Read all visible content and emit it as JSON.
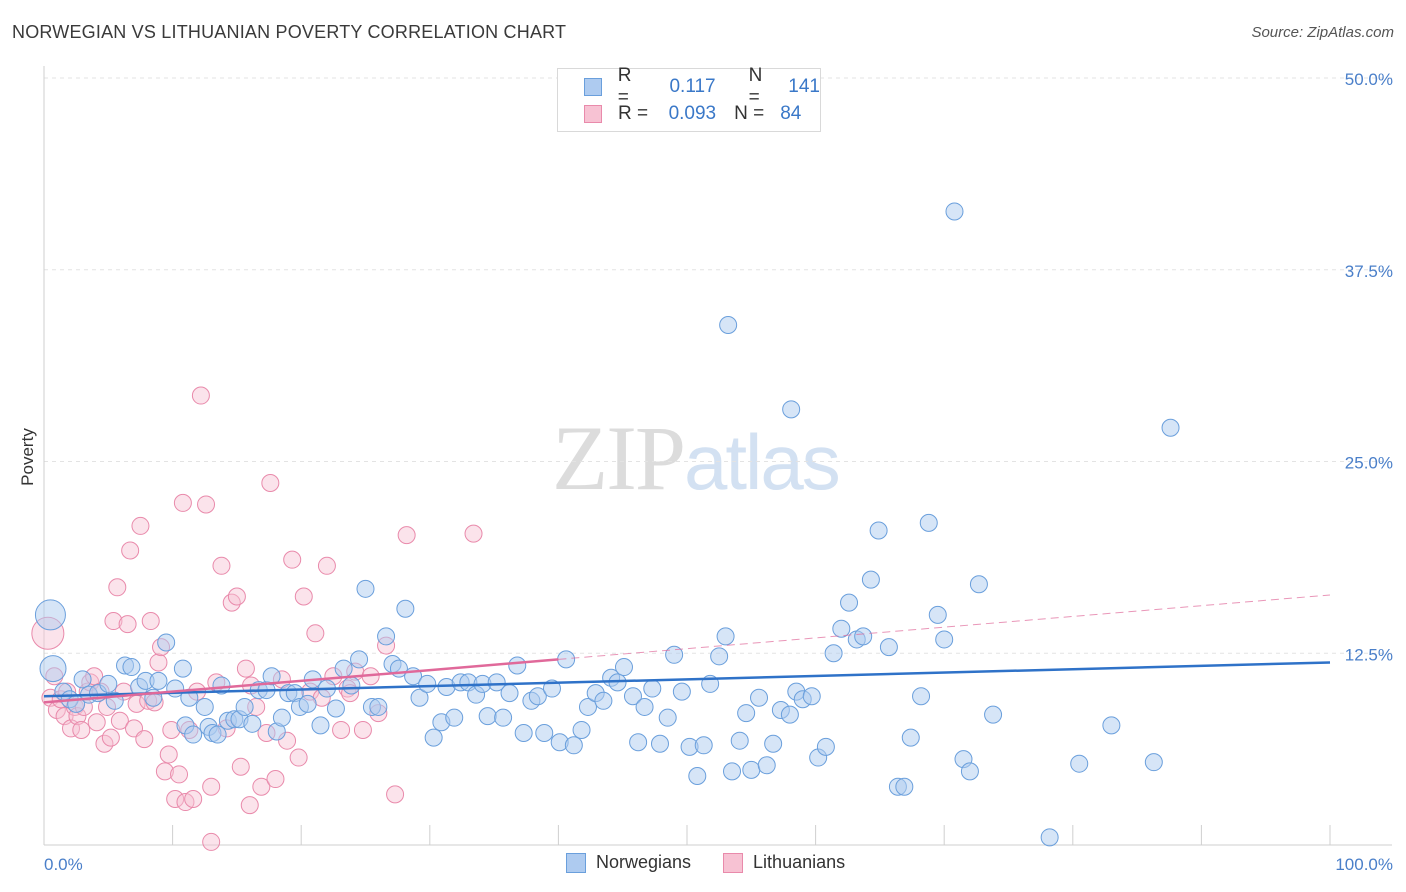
{
  "header": {
    "title": "NORWEGIAN VS LITHUANIAN POVERTY CORRELATION CHART",
    "source": "Source: ZipAtlas.com"
  },
  "watermark": {
    "zip": "ZIP",
    "atlas": "atlas"
  },
  "legend_top": {
    "rows": [
      {
        "r_label": "R =",
        "r_value": "0.117",
        "n_label": "N =",
        "n_value": "141"
      },
      {
        "r_label": "R =",
        "r_value": "0.093",
        "n_label": "N =",
        "n_value": "84"
      }
    ]
  },
  "legend_bottom": {
    "items": [
      "Norwegians",
      "Lithuanians"
    ]
  },
  "colors": {
    "blue_fill": "#aecbf0",
    "blue_stroke": "#6a9fdc",
    "blue_line": "#2f72c8",
    "pink_fill": "#f7c2d3",
    "pink_stroke": "#e98aab",
    "pink_line": "#e0699a",
    "grid": "#e3e3e3",
    "tick_text": "#4a7fc9"
  },
  "chart_data": {
    "type": "scatter",
    "title": "NORWEGIAN VS LITHUANIAN POVERTY CORRELATION CHART",
    "xlabel": "",
    "ylabel": "Poverty",
    "xlim": [
      0,
      100
    ],
    "ylim": [
      0,
      50
    ],
    "x_tick_labels": [
      "0.0%",
      "100.0%"
    ],
    "y_ticks": [
      12.5,
      25.0,
      37.5,
      50.0
    ],
    "y_tick_labels": [
      "12.5%",
      "25.0%",
      "37.5%",
      "50.0%"
    ],
    "grid": true,
    "legend_position": "top-center",
    "series": [
      {
        "name": "Norwegians",
        "r": 0.117,
        "n": 141,
        "trend": {
          "x": [
            0,
            100
          ],
          "y": [
            9.7,
            11.9
          ]
        },
        "points": [
          [
            0.5,
            15.0
          ],
          [
            0.7,
            11.5
          ],
          [
            1.5,
            10.0
          ],
          [
            2.0,
            9.5
          ],
          [
            2.5,
            9.2
          ],
          [
            3.0,
            10.8
          ],
          [
            3.5,
            9.8
          ],
          [
            4.2,
            9.9
          ],
          [
            5.0,
            10.5
          ],
          [
            5.5,
            9.4
          ],
          [
            6.3,
            11.7
          ],
          [
            6.8,
            11.6
          ],
          [
            7.4,
            10.3
          ],
          [
            7.9,
            10.7
          ],
          [
            8.5,
            9.6
          ],
          [
            8.9,
            10.7
          ],
          [
            9.5,
            13.2
          ],
          [
            10.2,
            10.2
          ],
          [
            10.8,
            11.5
          ],
          [
            11.3,
            9.6
          ],
          [
            11.0,
            7.8
          ],
          [
            11.6,
            7.2
          ],
          [
            12.5,
            9.0
          ],
          [
            12.8,
            7.7
          ],
          [
            13.1,
            7.3
          ],
          [
            13.5,
            7.2
          ],
          [
            13.8,
            10.4
          ],
          [
            14.3,
            8.1
          ],
          [
            14.8,
            8.2
          ],
          [
            15.2,
            8.2
          ],
          [
            15.6,
            9.0
          ],
          [
            16.2,
            7.9
          ],
          [
            16.7,
            10.1
          ],
          [
            17.3,
            10.1
          ],
          [
            17.7,
            11.0
          ],
          [
            18.1,
            7.4
          ],
          [
            18.5,
            8.3
          ],
          [
            19.0,
            9.9
          ],
          [
            19.5,
            9.9
          ],
          [
            19.9,
            9.0
          ],
          [
            20.5,
            9.2
          ],
          [
            20.9,
            10.8
          ],
          [
            21.5,
            7.8
          ],
          [
            22.0,
            10.2
          ],
          [
            22.7,
            8.9
          ],
          [
            23.3,
            11.5
          ],
          [
            23.9,
            10.4
          ],
          [
            24.5,
            12.1
          ],
          [
            25.0,
            16.7
          ],
          [
            25.5,
            9.0
          ],
          [
            26.0,
            9.0
          ],
          [
            26.6,
            13.6
          ],
          [
            27.1,
            11.8
          ],
          [
            27.6,
            11.5
          ],
          [
            28.1,
            15.4
          ],
          [
            28.7,
            11.0
          ],
          [
            29.2,
            9.6
          ],
          [
            29.8,
            10.5
          ],
          [
            30.3,
            7.0
          ],
          [
            30.9,
            8.0
          ],
          [
            31.3,
            10.3
          ],
          [
            31.9,
            8.3
          ],
          [
            32.4,
            10.6
          ],
          [
            33.0,
            10.6
          ],
          [
            33.6,
            9.8
          ],
          [
            34.1,
            10.5
          ],
          [
            34.5,
            8.4
          ],
          [
            35.2,
            10.6
          ],
          [
            35.7,
            8.3
          ],
          [
            36.2,
            9.9
          ],
          [
            36.8,
            11.7
          ],
          [
            37.3,
            7.3
          ],
          [
            37.9,
            9.4
          ],
          [
            38.4,
            9.7
          ],
          [
            38.9,
            7.3
          ],
          [
            39.5,
            10.2
          ],
          [
            40.1,
            6.7
          ],
          [
            40.6,
            12.1
          ],
          [
            41.2,
            6.5
          ],
          [
            41.8,
            7.5
          ],
          [
            42.3,
            9.0
          ],
          [
            42.9,
            9.9
          ],
          [
            43.5,
            9.4
          ],
          [
            44.1,
            10.9
          ],
          [
            44.6,
            10.6
          ],
          [
            45.1,
            11.6
          ],
          [
            45.8,
            9.7
          ],
          [
            46.2,
            6.7
          ],
          [
            46.7,
            9.0
          ],
          [
            47.3,
            10.2
          ],
          [
            47.9,
            6.6
          ],
          [
            48.5,
            8.3
          ],
          [
            49.0,
            12.4
          ],
          [
            49.6,
            10.0
          ],
          [
            50.2,
            6.4
          ],
          [
            50.8,
            4.5
          ],
          [
            51.3,
            6.5
          ],
          [
            51.8,
            10.5
          ],
          [
            52.5,
            12.3
          ],
          [
            53.0,
            13.6
          ],
          [
            53.5,
            4.8
          ],
          [
            54.1,
            6.8
          ],
          [
            54.6,
            8.6
          ],
          [
            55.0,
            4.9
          ],
          [
            55.6,
            9.6
          ],
          [
            56.2,
            5.2
          ],
          [
            56.7,
            6.6
          ],
          [
            57.3,
            8.8
          ],
          [
            58.0,
            8.5
          ],
          [
            58.5,
            10.0
          ],
          [
            59.0,
            9.5
          ],
          [
            59.7,
            9.7
          ],
          [
            60.2,
            5.7
          ],
          [
            60.8,
            6.4
          ],
          [
            61.4,
            12.5
          ],
          [
            62.0,
            14.1
          ],
          [
            62.6,
            15.8
          ],
          [
            63.2,
            13.4
          ],
          [
            63.7,
            13.6
          ],
          [
            64.3,
            17.3
          ],
          [
            64.9,
            20.5
          ],
          [
            65.7,
            12.9
          ],
          [
            66.4,
            3.8
          ],
          [
            66.9,
            3.8
          ],
          [
            67.4,
            7.0
          ],
          [
            68.2,
            9.7
          ],
          [
            68.8,
            21.0
          ],
          [
            69.5,
            15.0
          ],
          [
            70.0,
            13.4
          ],
          [
            70.8,
            41.3
          ],
          [
            71.5,
            5.6
          ],
          [
            72.0,
            4.8
          ],
          [
            72.7,
            17.0
          ],
          [
            73.8,
            8.5
          ],
          [
            78.2,
            0.5
          ],
          [
            80.5,
            5.3
          ],
          [
            83.0,
            7.8
          ],
          [
            86.3,
            5.4
          ],
          [
            87.6,
            27.2
          ],
          [
            53.2,
            33.9
          ],
          [
            58.1,
            28.4
          ]
        ]
      },
      {
        "name": "Lithuanians",
        "r": 0.093,
        "n": 84,
        "trend": {
          "x": [
            0,
            100
          ],
          "y": [
            9.3,
            16.3
          ]
        },
        "trend_solid_to_x": 40,
        "points": [
          [
            0.3,
            13.8
          ],
          [
            0.5,
            9.6
          ],
          [
            0.8,
            11.0
          ],
          [
            1.0,
            8.8
          ],
          [
            1.3,
            9.5
          ],
          [
            1.6,
            8.4
          ],
          [
            1.8,
            10.0
          ],
          [
            2.1,
            7.6
          ],
          [
            2.4,
            9.0
          ],
          [
            2.6,
            8.4
          ],
          [
            2.9,
            7.5
          ],
          [
            3.1,
            9.0
          ],
          [
            3.4,
            10.0
          ],
          [
            3.6,
            10.6
          ],
          [
            3.9,
            11.0
          ],
          [
            4.1,
            8.0
          ],
          [
            4.4,
            10.0
          ],
          [
            4.7,
            6.6
          ],
          [
            4.9,
            9.0
          ],
          [
            5.2,
            7.0
          ],
          [
            5.4,
            14.6
          ],
          [
            5.7,
            16.8
          ],
          [
            5.9,
            8.1
          ],
          [
            6.2,
            10.0
          ],
          [
            6.5,
            14.4
          ],
          [
            6.7,
            19.2
          ],
          [
            7.0,
            7.6
          ],
          [
            7.2,
            9.2
          ],
          [
            7.5,
            20.8
          ],
          [
            7.8,
            6.9
          ],
          [
            8.1,
            9.4
          ],
          [
            8.3,
            14.6
          ],
          [
            8.6,
            9.3
          ],
          [
            8.9,
            11.9
          ],
          [
            9.1,
            12.9
          ],
          [
            9.4,
            4.8
          ],
          [
            9.7,
            5.9
          ],
          [
            9.9,
            7.5
          ],
          [
            10.2,
            3.0
          ],
          [
            10.5,
            4.6
          ],
          [
            10.8,
            22.3
          ],
          [
            11.0,
            2.8
          ],
          [
            11.3,
            7.5
          ],
          [
            11.6,
            3.0
          ],
          [
            11.9,
            10.0
          ],
          [
            12.2,
            29.3
          ],
          [
            12.6,
            22.2
          ],
          [
            13.0,
            3.8
          ],
          [
            13.4,
            10.6
          ],
          [
            13.8,
            18.2
          ],
          [
            14.2,
            7.6
          ],
          [
            14.6,
            15.8
          ],
          [
            15.0,
            16.2
          ],
          [
            15.3,
            5.1
          ],
          [
            15.7,
            11.5
          ],
          [
            16.1,
            10.4
          ],
          [
            16.5,
            9.0
          ],
          [
            16.9,
            3.8
          ],
          [
            17.3,
            7.3
          ],
          [
            17.6,
            23.6
          ],
          [
            18.0,
            4.3
          ],
          [
            18.5,
            10.8
          ],
          [
            18.9,
            6.8
          ],
          [
            19.3,
            18.6
          ],
          [
            19.8,
            5.7
          ],
          [
            20.2,
            16.2
          ],
          [
            20.7,
            10.0
          ],
          [
            21.1,
            13.8
          ],
          [
            21.6,
            9.6
          ],
          [
            22.0,
            18.2
          ],
          [
            22.5,
            11.0
          ],
          [
            23.1,
            7.5
          ],
          [
            23.6,
            10.2
          ],
          [
            24.2,
            11.3
          ],
          [
            24.8,
            7.5
          ],
          [
            25.4,
            11.0
          ],
          [
            26.0,
            8.6
          ],
          [
            26.6,
            13.0
          ],
          [
            27.3,
            3.3
          ],
          [
            13.0,
            0.2
          ],
          [
            16.0,
            2.6
          ],
          [
            23.8,
            9.9
          ],
          [
            28.2,
            20.2
          ],
          [
            33.4,
            20.3
          ]
        ]
      }
    ]
  }
}
